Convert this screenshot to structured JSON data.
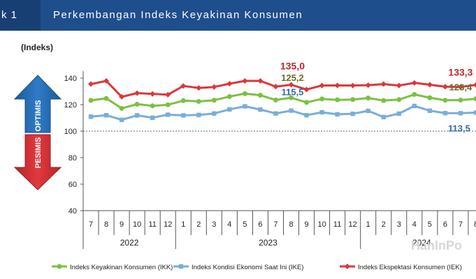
{
  "header": {
    "number": "k 1",
    "title": "Perkembangan Indeks Keyakinan Konsumen"
  },
  "watermark": "HanInPo",
  "chart_data": {
    "type": "line",
    "ylabel": "(Indeks)",
    "ylim": [
      40,
      140
    ],
    "yticks": [
      40,
      60,
      80,
      100,
      120,
      140
    ],
    "threshold": 100,
    "optimis_label": "OPTIMIS",
    "pesimis_label": "PESIMIS",
    "categories": [
      "7",
      "8",
      "9",
      "10",
      "11",
      "12",
      "1",
      "2",
      "3",
      "4",
      "5",
      "6",
      "7",
      "8",
      "9",
      "10",
      "11",
      "12",
      "1",
      "2",
      "3",
      "4",
      "5",
      "6",
      "7",
      "8"
    ],
    "years": [
      {
        "label": "2022",
        "start": 0,
        "end": 5
      },
      {
        "label": "2023",
        "start": 6,
        "end": 17
      },
      {
        "label": "2024",
        "start": 18,
        "end": 25
      }
    ],
    "series": [
      {
        "name": "Indeks Keyakinan Konsumen (IKK)",
        "color": "#7ac143",
        "marker": "circle",
        "values": [
          123.2,
          124.7,
          117.2,
          120.3,
          119.1,
          119.9,
          123.0,
          122.4,
          123.3,
          126.1,
          128.3,
          127.1,
          123.5,
          125.2,
          121.7,
          124.3,
          123.6,
          123.8,
          125.0,
          123.1,
          123.8,
          127.7,
          125.2,
          123.3,
          123.4,
          124.4
        ]
      },
      {
        "name": "Indeks Kondisi Ekonomi Saat Ini (IKE)",
        "color": "#7aaed6",
        "marker": "square",
        "values": [
          110.9,
          112.0,
          108.5,
          111.9,
          110.1,
          112.4,
          111.9,
          112.2,
          113.3,
          116.4,
          118.7,
          116.3,
          113.3,
          115.5,
          112.0,
          114.2,
          112.7,
          113.1,
          115.3,
          110.6,
          113.2,
          119.0,
          115.4,
          113.6,
          113.5,
          114.0
        ]
      },
      {
        "name": "Indeks Ekspektasi Konsumen (IEK)",
        "color": "#d9383a",
        "marker": "diamond",
        "values": [
          135.5,
          137.9,
          125.9,
          128.7,
          128.1,
          127.5,
          134.1,
          132.6,
          133.3,
          135.8,
          137.9,
          137.9,
          133.6,
          135.0,
          131.4,
          134.4,
          134.5,
          134.4,
          134.7,
          135.5,
          134.4,
          136.4,
          135.0,
          133.5,
          133.3,
          134.9
        ]
      }
    ],
    "annotations": [
      {
        "text": "135,0",
        "color": "#c0262d"
      },
      {
        "text": "125,2",
        "color": "#6b6b2e"
      },
      {
        "text": "115,5",
        "color": "#2e6aa8"
      },
      {
        "text": "133,3",
        "color": "#c0262d"
      },
      {
        "text": "123,4",
        "color": "#6b6b2e"
      },
      {
        "text": "113,5",
        "color": "#2e6aa8"
      }
    ]
  }
}
